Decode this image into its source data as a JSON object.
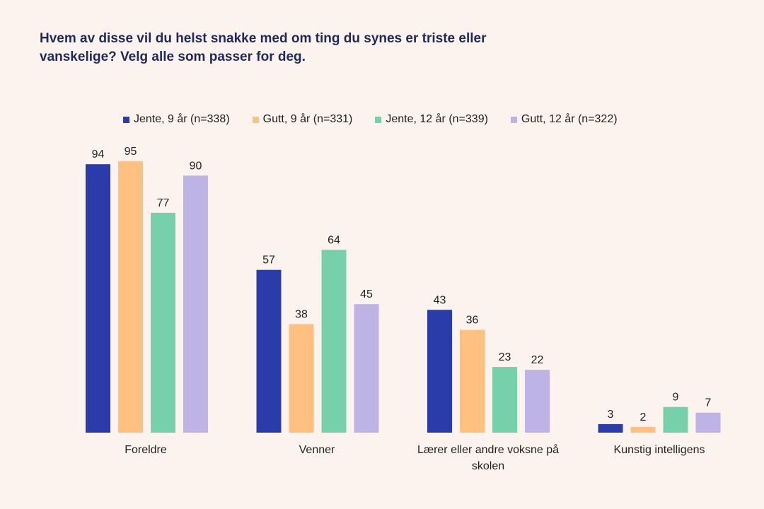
{
  "chart_data": {
    "type": "bar",
    "title": "Hvem av disse vil du helst snakke med om ting du synes er triste eller vanskelige? Velg alle som passer for deg.",
    "categories": [
      "Foreldre",
      "Venner",
      "Lærer eller andre voksne på skolen",
      "Kunstig intelligens"
    ],
    "series": [
      {
        "name": "Jente, 9 år (n=338)",
        "color": "#2a3caa",
        "values": [
          94,
          57,
          43,
          3
        ]
      },
      {
        "name": "Gutt, 9 år (n=331)",
        "color": "#ffc080",
        "values": [
          95,
          38,
          36,
          2
        ]
      },
      {
        "name": "Jente, 12 år (n=339)",
        "color": "#76d0aa",
        "values": [
          77,
          64,
          23,
          9
        ]
      },
      {
        "name": "Gutt, 12 år (n=322)",
        "color": "#bdb3e4",
        "values": [
          90,
          45,
          22,
          7
        ]
      }
    ],
    "ylim": [
      0,
      100
    ],
    "grid": false,
    "legend": "top",
    "data_labels": true
  }
}
